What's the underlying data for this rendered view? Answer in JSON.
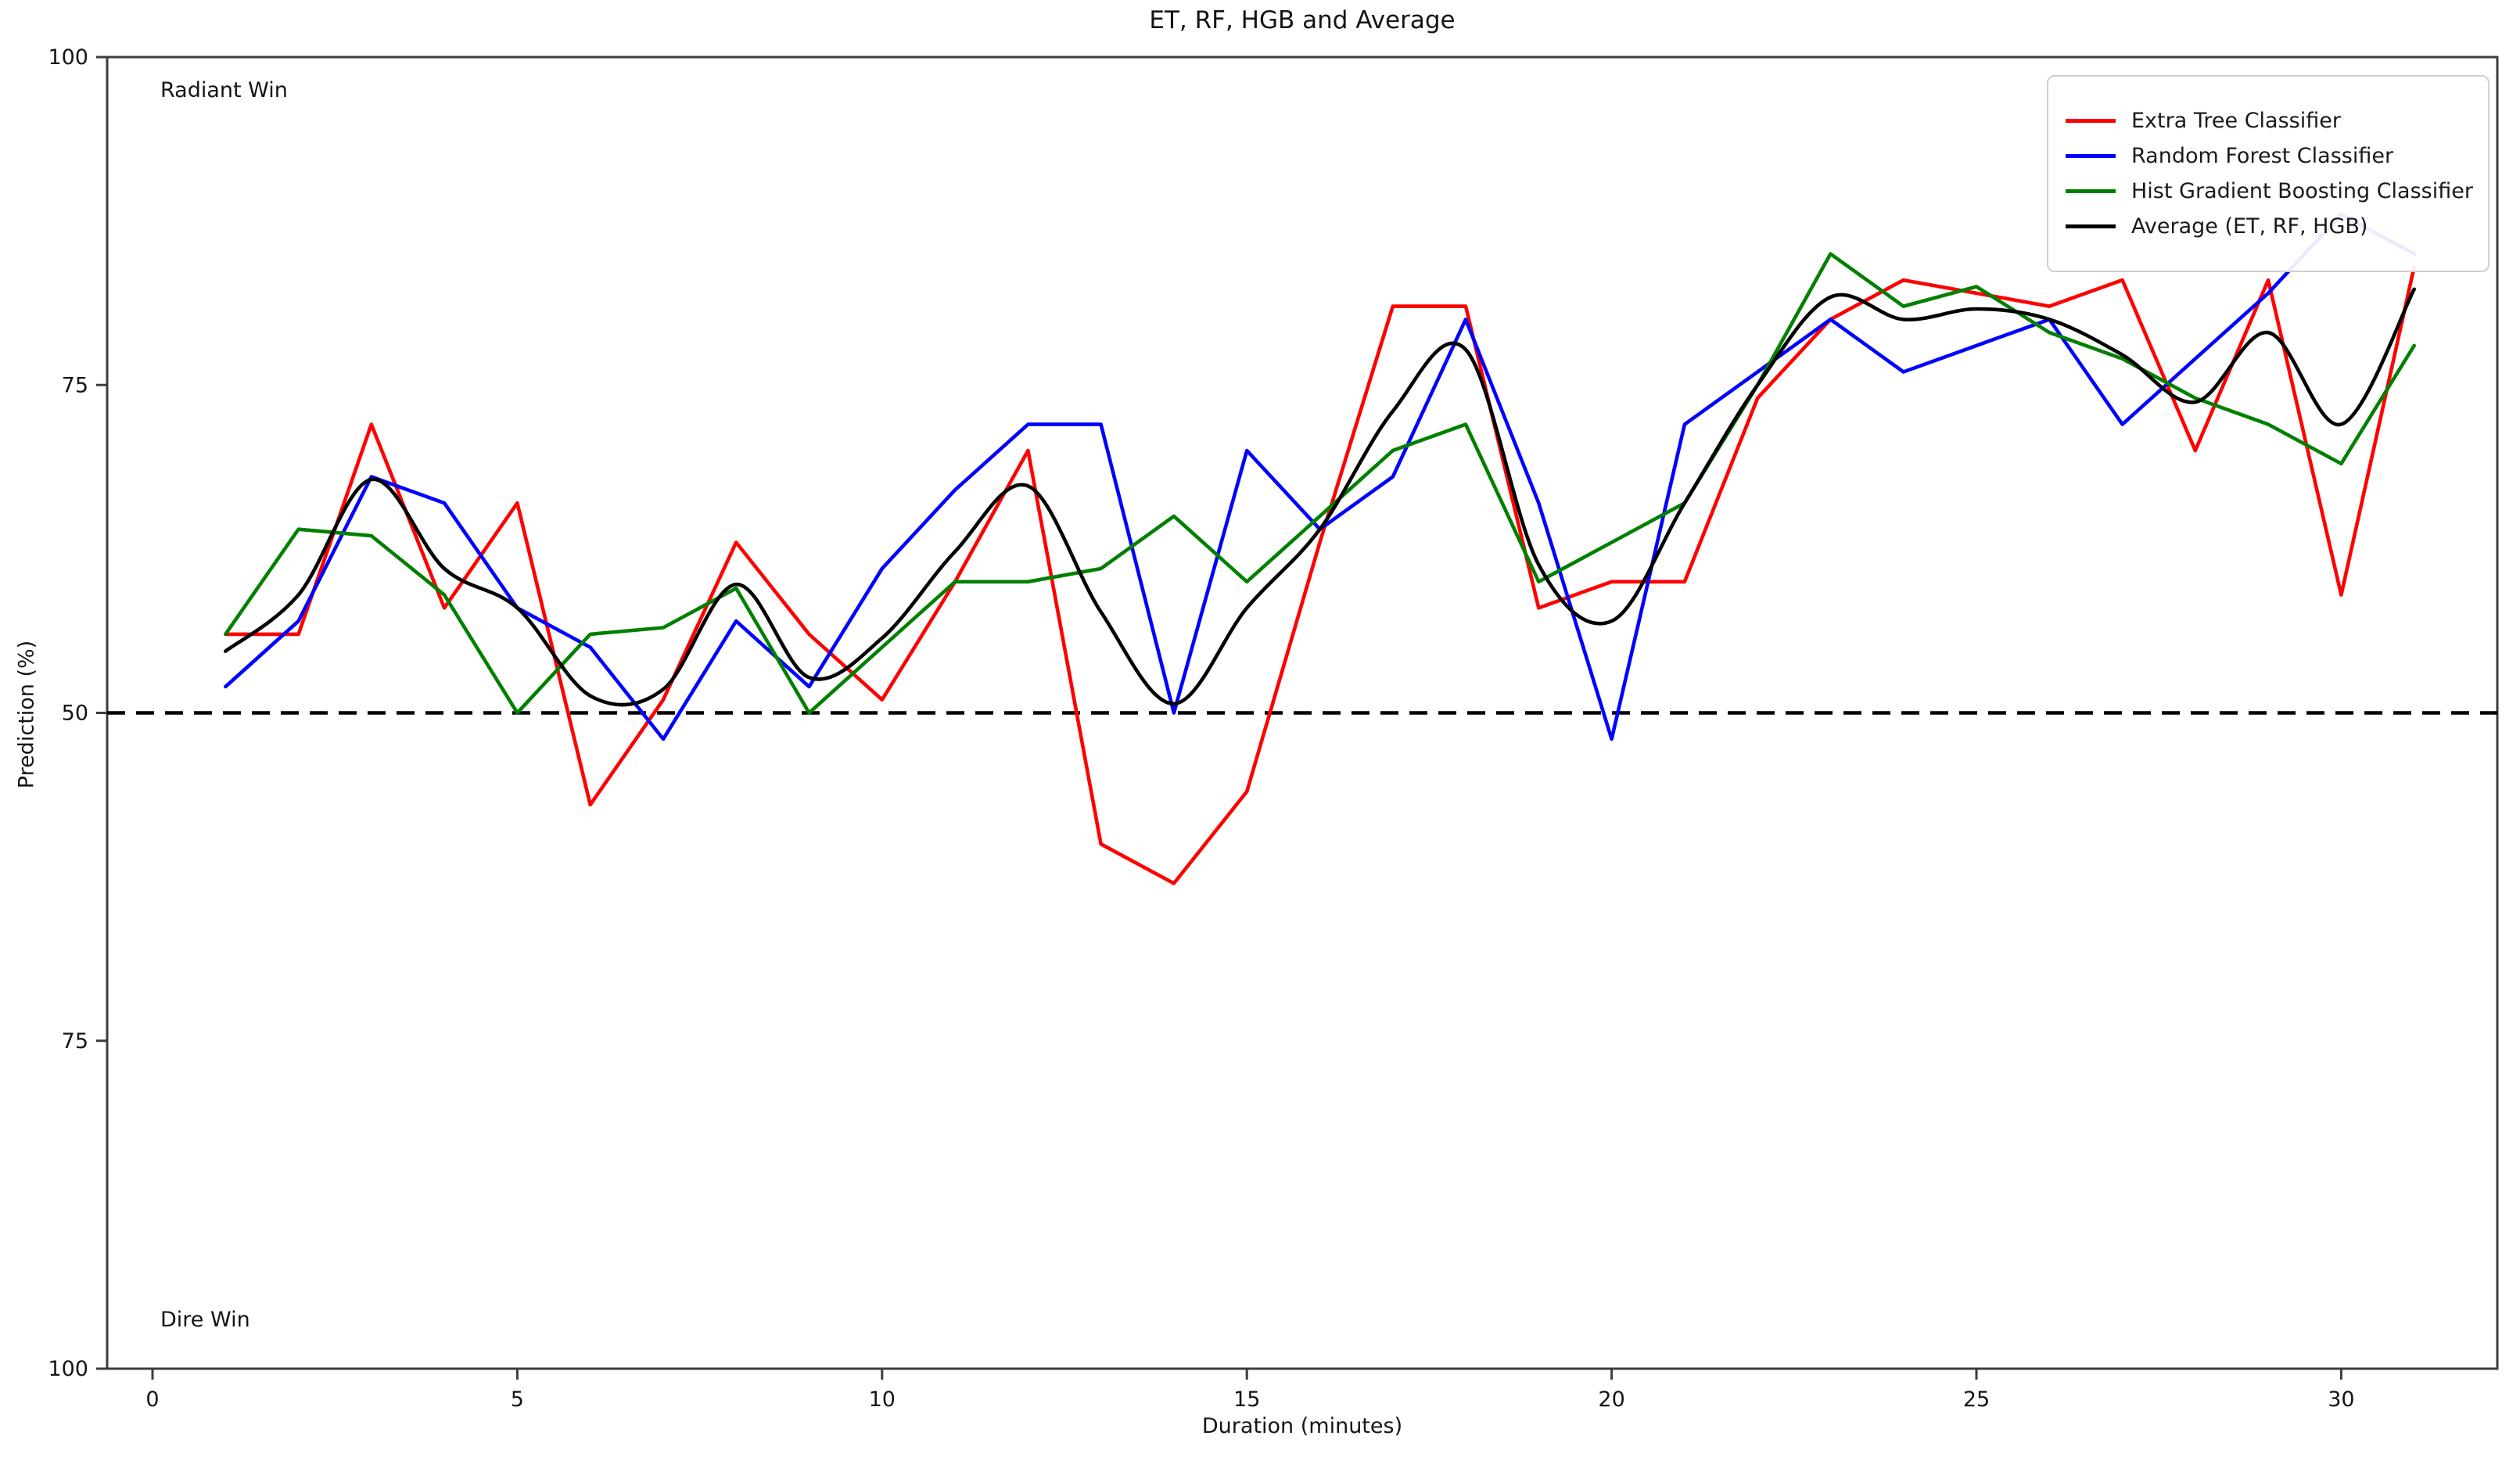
{
  "figure": {
    "title": "ET, RF, HGB and Average",
    "xlabel": "Duration (minutes)",
    "ylabel": "Prediction (%)"
  },
  "chart_data": {
    "type": "line",
    "title": "ET, RF, HGB and Average",
    "xlabel": "Duration (minutes)",
    "ylabel": "Prediction (%)",
    "grid": false,
    "legend_position": "upper right",
    "x": [
      1,
      2,
      3,
      4,
      5,
      6,
      7,
      8,
      9,
      10,
      11,
      12,
      13,
      14,
      15,
      16,
      17,
      18,
      19,
      20,
      21,
      22,
      23,
      24,
      25,
      26,
      27,
      28,
      29,
      30,
      31
    ],
    "series": [
      {
        "name": "Extra Tree Classifier",
        "color": "#ff0000",
        "style": "solid",
        "values": [
          56,
          56,
          72,
          58,
          66,
          43,
          51,
          63,
          56,
          51,
          60,
          70,
          40,
          37,
          44,
          63,
          81,
          81,
          58,
          60,
          60,
          74,
          80,
          83,
          82,
          81,
          83,
          70,
          83,
          59,
          84
        ]
      },
      {
        "name": "Random Forest Classifier",
        "color": "#0000ff",
        "style": "solid",
        "values": [
          52,
          57,
          68,
          66,
          58,
          55,
          48,
          57,
          52,
          61,
          67,
          72,
          72,
          50,
          70,
          64,
          68,
          80,
          66,
          48,
          72,
          76,
          80,
          76,
          78,
          80,
          72,
          77,
          82,
          88,
          85
        ]
      },
      {
        "name": "Hist Gradient Boosting Classifier",
        "color": "#008000",
        "style": "solid",
        "values": [
          56,
          64,
          63.5,
          59,
          50,
          56,
          56.5,
          59.5,
          50,
          55,
          60,
          60,
          61,
          65,
          60,
          65,
          70,
          72,
          60,
          63,
          66,
          75,
          85,
          81,
          82.5,
          79,
          77,
          74,
          72,
          69,
          78
        ]
      },
      {
        "name": "Average (ET, RF, HGB)",
        "color": "#000000",
        "style": "smooth",
        "values": [
          54.7,
          59.0,
          67.8,
          61.0,
          58.0,
          51.3,
          51.8,
          59.8,
          52.7,
          55.7,
          62.3,
          67.3,
          57.7,
          50.7,
          58.0,
          64.0,
          73.0,
          77.7,
          61.3,
          57.0,
          66.0,
          75.0,
          81.7,
          80.0,
          80.8,
          80.0,
          77.3,
          73.7,
          79.0,
          72.0,
          82.3
        ]
      }
    ],
    "threshold_line": {
      "value": 50,
      "color": "#000000",
      "style": "dashed"
    },
    "x_ticks": [
      0,
      5,
      10,
      15,
      20,
      25,
      30
    ],
    "y_ticks": [
      {
        "value": 100,
        "label": "100"
      },
      {
        "value": 75,
        "label": "75"
      },
      {
        "value": 50,
        "label": "50"
      },
      {
        "value": 25,
        "label": "75"
      },
      {
        "value": 0,
        "label": "100"
      }
    ],
    "ylim_note": "y axis is mirrored around 50: top half = Radiant win probability, bottom half = Dire win probability",
    "annotations": [
      {
        "text": "Radiant Win",
        "position": "top-left"
      },
      {
        "text": "Dire Win",
        "position": "bottom-left"
      }
    ]
  }
}
